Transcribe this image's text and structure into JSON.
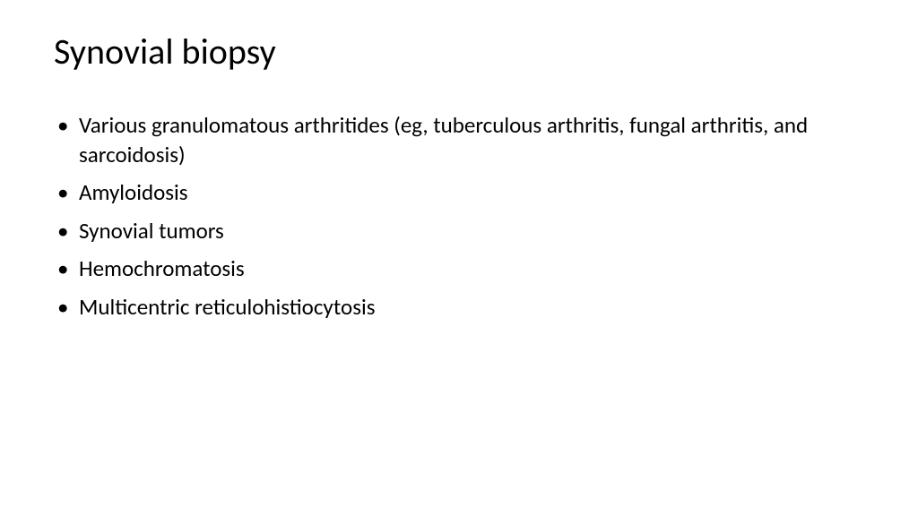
{
  "slide": {
    "title": "Synovial biopsy",
    "bullets": [
      "Various granulomatous arthritides (eg, tuberculous arthritis, fungal arthritis, and sarcoidosis)",
      "Amyloidosis",
      "Synovial tumors",
      "Hemochromatosis",
      "Multicentric reticulohistiocytosis"
    ],
    "background_color": "#ffffff",
    "text_color": "#000000",
    "title_fontsize": 40,
    "bullet_fontsize": 25
  }
}
